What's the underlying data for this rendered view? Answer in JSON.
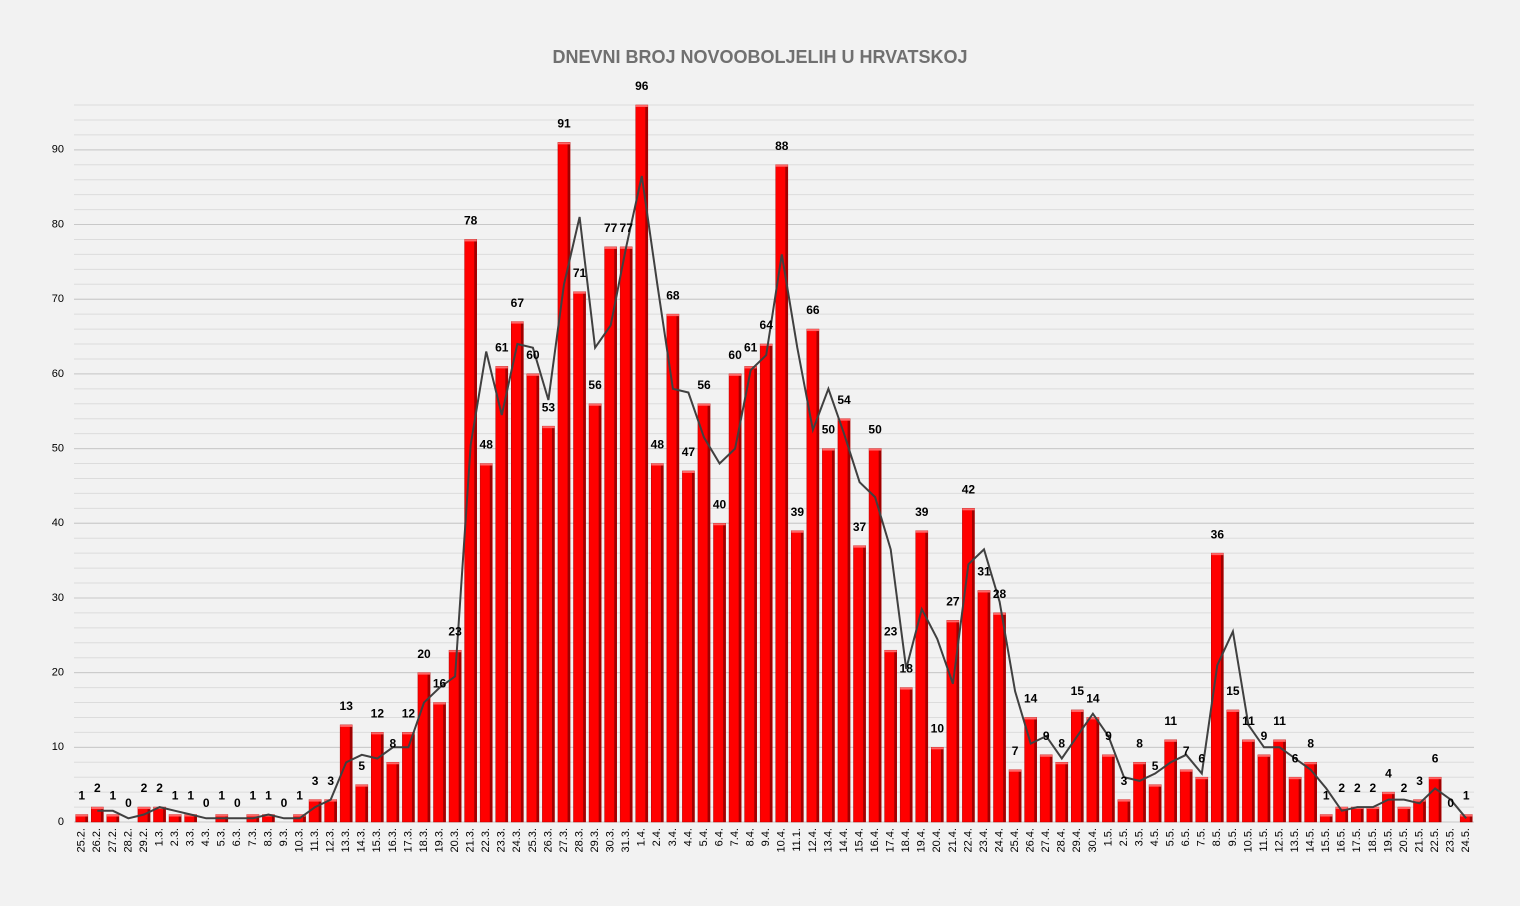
{
  "chart_data": {
    "type": "bar",
    "title": "DNEVNI BROJ NOVOOBOLJELIH U HRVATSKOJ",
    "categories": [
      "25.2.",
      "26.2.",
      "27.2.",
      "28.2.",
      "29.2.",
      "1.3.",
      "2.3.",
      "3.3.",
      "4.3.",
      "5.3.",
      "6.3.",
      "7.3.",
      "8.3.",
      "9.3.",
      "10.3.",
      "11.3.",
      "12.3.",
      "13.3.",
      "14.3.",
      "15.3.",
      "16.3.",
      "17.3.",
      "18.3.",
      "19.3.",
      "20.3.",
      "21.3.",
      "22.3.",
      "23.3.",
      "24.3.",
      "25.3.",
      "26.3.",
      "27.3.",
      "28.3.",
      "29.3.",
      "30.3.",
      "31.3.",
      "1.4.",
      "2.4.",
      "3.4.",
      "4.4.",
      "5.4.",
      "6.4.",
      "7.4.",
      "8.4.",
      "9.4.",
      "10.4.",
      "11.1.",
      "12.4.",
      "13.4.",
      "14.4.",
      "15.4.",
      "16.4.",
      "17.4.",
      "18.4.",
      "19.4.",
      "20.4.",
      "21.4.",
      "22.4.",
      "23.4.",
      "24.4.",
      "25.4.",
      "26.4.",
      "27.4.",
      "28.4.",
      "29.4.",
      "30.4.",
      "1.5.",
      "2.5.",
      "3.5.",
      "4.5.",
      "5.5.",
      "6.5.",
      "7.5.",
      "8.5.",
      "9.5.",
      "10.5.",
      "11.5.",
      "12.5.",
      "13.5.",
      "14.5.",
      "15.5.",
      "16.5.",
      "17.5.",
      "18.5.",
      "19.5.",
      "20.5.",
      "21.5.",
      "22.5.",
      "23.5.",
      "24.5."
    ],
    "values": [
      1,
      2,
      1,
      0,
      2,
      2,
      1,
      1,
      0,
      1,
      0,
      1,
      1,
      0,
      1,
      3,
      3,
      13,
      5,
      12,
      8,
      12,
      20,
      16,
      23,
      78,
      48,
      61,
      67,
      60,
      53,
      91,
      71,
      56,
      77,
      77,
      96,
      48,
      68,
      47,
      56,
      40,
      60,
      61,
      64,
      88,
      39,
      66,
      50,
      54,
      37,
      50,
      23,
      18,
      39,
      10,
      27,
      42,
      31,
      28,
      7,
      14,
      9,
      8,
      15,
      14,
      9,
      3,
      8,
      5,
      11,
      7,
      6,
      36,
      15,
      11,
      9,
      11,
      6,
      8,
      1,
      2,
      2,
      2,
      4,
      2,
      3,
      6,
      0,
      1
    ],
    "color": "#ff0000",
    "trend": {
      "color": "#404040",
      "values": [
        null,
        1.5,
        1.5,
        0.5,
        1,
        2,
        1.5,
        1,
        0.5,
        0.5,
        0.5,
        0.5,
        1,
        0.5,
        0.5,
        2,
        3,
        8,
        9,
        8.5,
        10,
        10,
        16,
        18,
        19.5,
        50.5,
        63,
        54.5,
        64,
        63.5,
        56.5,
        72,
        81,
        63.5,
        66.5,
        77,
        86.5,
        72,
        58,
        57.5,
        51.5,
        48,
        50,
        60.5,
        62.5,
        76,
        63.5,
        52.5,
        58,
        52,
        45.5,
        43.5,
        36.5,
        20.5,
        28.5,
        24.5,
        18.5,
        34.5,
        36.5,
        29.5,
        17.5,
        10.5,
        11.5,
        8.5,
        11.5,
        14.5,
        11.5,
        6,
        5.5,
        6.5,
        8,
        9,
        6.5,
        21,
        25.5,
        13,
        10,
        10,
        8.5,
        7,
        4.5,
        1.5,
        2,
        2,
        3,
        3,
        2.5,
        4.5,
        3,
        0.5
      ]
    },
    "ylim": [
      0,
      96
    ],
    "yticks": [
      0,
      10,
      20,
      30,
      40,
      50,
      60,
      70,
      80,
      90
    ],
    "grid": true,
    "minor_grid_step": 2
  }
}
